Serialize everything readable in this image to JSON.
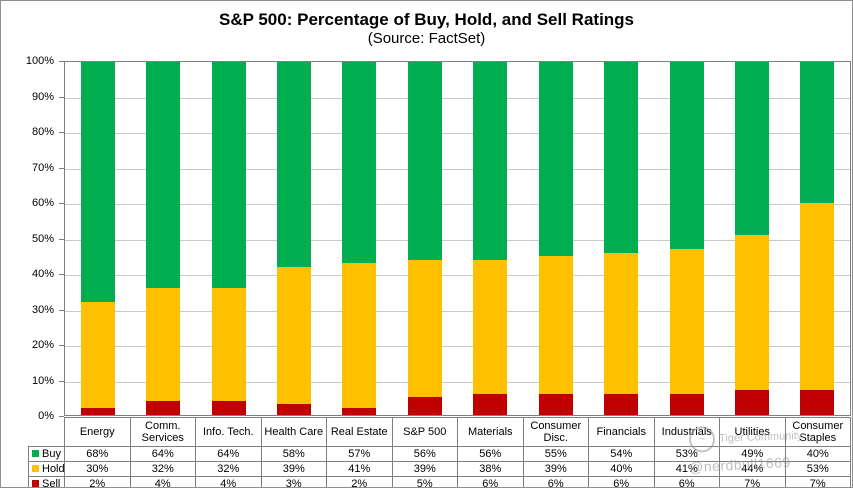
{
  "title": "S&P 500: Percentage of Buy, Hold, and Sell Ratings",
  "subtitle": "(Source: FactSet)",
  "watermark": {
    "line1": "Tiger Community",
    "line2": "@nerdbull1669",
    "logo_glyph": "~"
  },
  "chart_data": {
    "type": "bar",
    "stacked": true,
    "title": "S&P 500: Percentage of Buy, Hold, and Sell Ratings",
    "subtitle": "(Source: FactSet)",
    "xlabel": "",
    "ylabel": "",
    "ylim": [
      0,
      100
    ],
    "grid": true,
    "legend_position": "table-left",
    "ytick_labels_top_down": [
      "100%",
      "90%",
      "80%",
      "70%",
      "60%",
      "50%",
      "40%",
      "30%",
      "20%",
      "10%",
      "0%"
    ],
    "categories": [
      "Energy",
      "Comm. Services",
      "Info. Tech.",
      "Health Care",
      "Real Estate",
      "S&P 500",
      "Materials",
      "Consumer Disc.",
      "Financials",
      "Industrials",
      "Utilities",
      "Consumer Staples"
    ],
    "series": [
      {
        "name": "Buy",
        "color": "#00AE50",
        "values": [
          68,
          64,
          64,
          58,
          57,
          56,
          56,
          55,
          54,
          53,
          49,
          40
        ]
      },
      {
        "name": "Hold",
        "color": "#FFC000",
        "values": [
          30,
          32,
          32,
          39,
          41,
          39,
          38,
          39,
          40,
          41,
          44,
          53
        ]
      },
      {
        "name": "Sell",
        "color": "#C00000",
        "values": [
          2,
          4,
          4,
          3,
          2,
          5,
          6,
          6,
          6,
          6,
          7,
          7
        ]
      }
    ],
    "value_suffix": "%"
  }
}
